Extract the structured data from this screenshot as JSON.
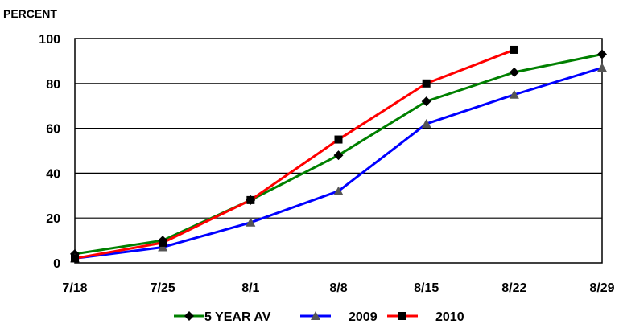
{
  "chart_data": {
    "type": "line",
    "ylabel": "PERCENT",
    "xlabel": "",
    "categories": [
      "7/18",
      "7/25",
      "8/1",
      "8/8",
      "8/15",
      "8/22",
      "8/29"
    ],
    "ylim": [
      0,
      100
    ],
    "yticks": [
      0,
      20,
      40,
      60,
      80,
      100
    ],
    "grid": "horizontal",
    "legend_position": "bottom",
    "series": [
      {
        "name": "5 YEAR AV",
        "color": "#008000",
        "marker": "diamond",
        "values": [
          4,
          10,
          28,
          48,
          72,
          85,
          93
        ]
      },
      {
        "name": "2009",
        "color": "#0000ff",
        "marker": "triangle",
        "values": [
          2,
          7,
          18,
          32,
          62,
          75,
          87
        ]
      },
      {
        "name": "2010",
        "color": "#ff0000",
        "marker": "square",
        "values": [
          2,
          9,
          28,
          55,
          80,
          95,
          null
        ]
      }
    ]
  }
}
